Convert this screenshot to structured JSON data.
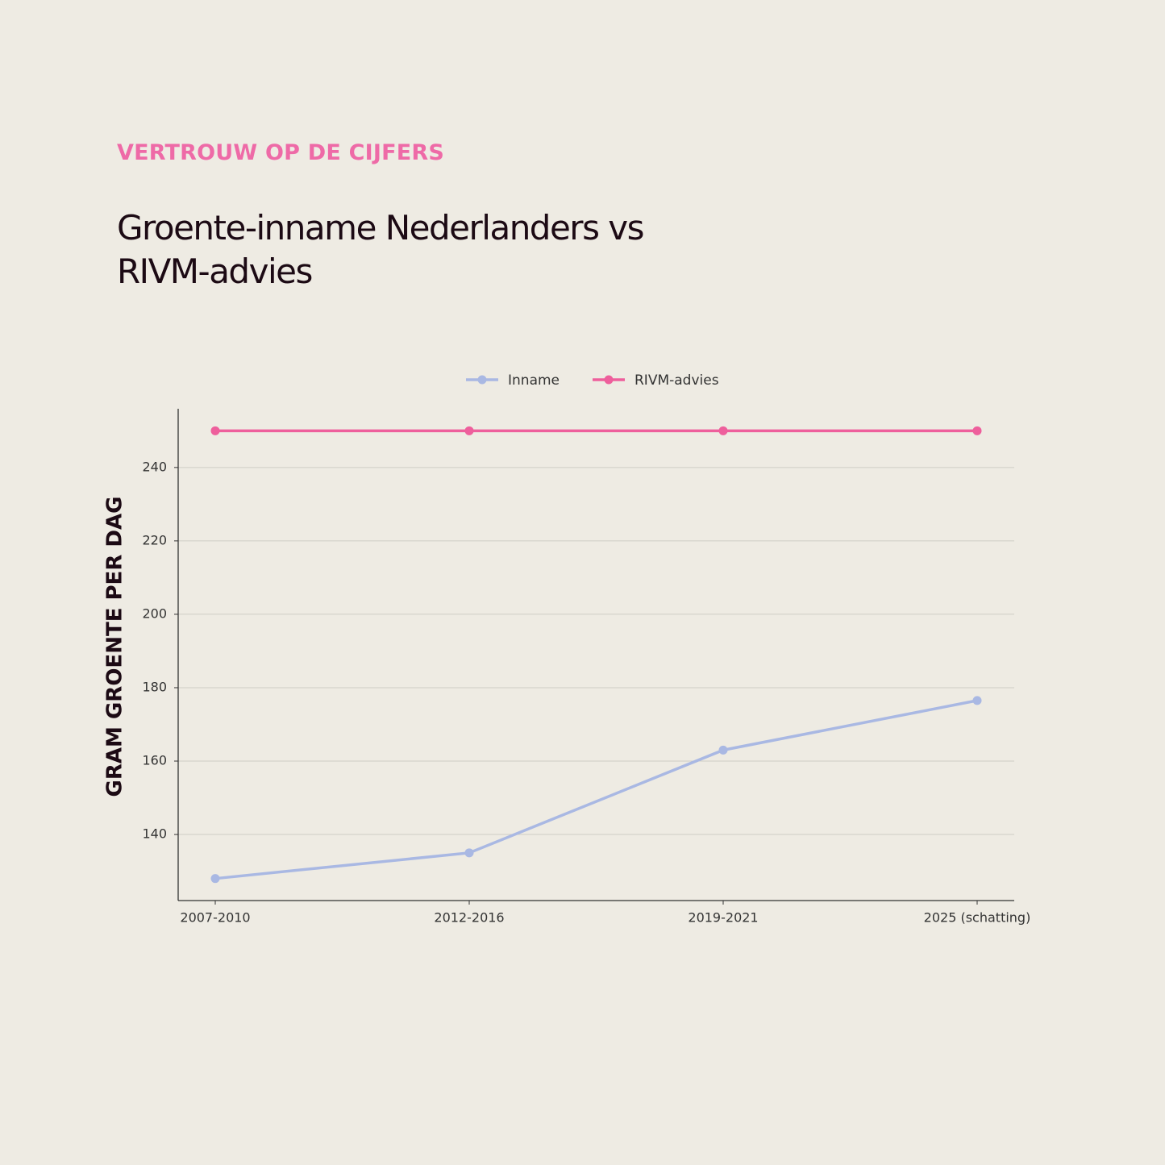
{
  "chart_data": {
    "type": "line",
    "kicker": "VERTROUW OP DE CIJFERS",
    "title": "Groente-inname Nederlanders vs RIVM-advies",
    "y_label": "GRAM GROENTE PER DAG",
    "categories": [
      "2007-2010",
      "2012-2016",
      "2019-2021",
      "2025 (schatting)"
    ],
    "series": [
      {
        "name": "Inname",
        "color": "#a9b8e3",
        "values": [
          128,
          135,
          163,
          176.5
        ]
      },
      {
        "name": "RIVM-advies",
        "color": "#ee5f9c",
        "values": [
          250,
          250,
          250,
          250
        ]
      }
    ],
    "ylim": [
      122,
      256
    ],
    "yticks": [
      140,
      160,
      180,
      200,
      220,
      240
    ],
    "grid": true
  }
}
